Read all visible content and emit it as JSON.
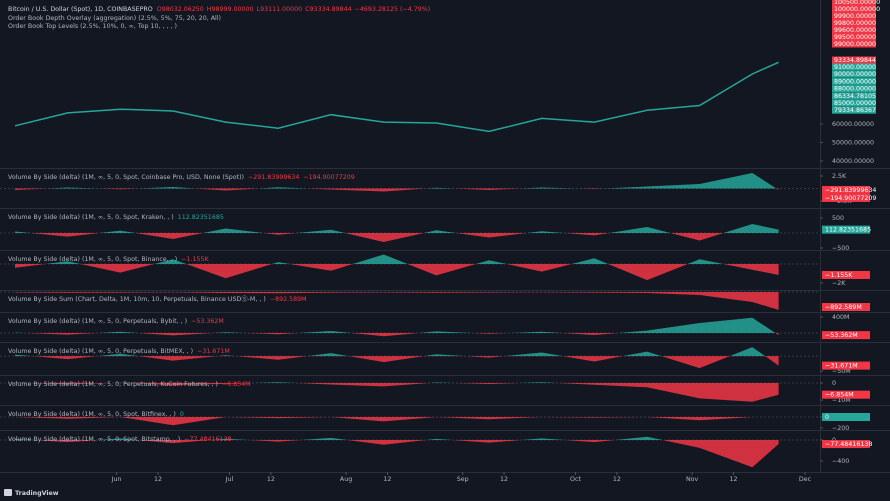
{
  "header": {
    "symbol": "Bitcoin / U.S. Dollar (Spot), 1D, COINBASEPRO",
    "ohlc": [
      "O98032.06250",
      "H98999.00000",
      "L93111.00000",
      "C93334.89844",
      "−4693.28125 (−4.79%)"
    ],
    "indicators": [
      "Order Book Depth Overlay (aggregation) (2.5%, 5%, 75, 20, 20, All)",
      "Order Book Top Levels (2.5%, 10%, 0, ∞, Top 10, , , , )"
    ]
  },
  "order_book": {
    "asks": [
      "100500.00000",
      "100000.00000",
      "99900.00000",
      "99800.00000",
      "99600.00000",
      "99500.00000",
      "99000.00000"
    ],
    "last": "93334.89844",
    "bids": [
      "91000.00000",
      "90000.00000",
      "89000.00000",
      "88000.00000",
      "86334.78105",
      "85000.00000",
      "79334.86367"
    ]
  },
  "chart_data": [
    {
      "type": "line",
      "x": [
        4,
        18,
        32,
        46,
        60,
        74,
        88,
        102,
        116,
        130,
        144,
        158,
        172,
        186,
        200,
        207
      ],
      "values": [
        59000,
        66000,
        68000,
        67000,
        61000,
        57700,
        65000,
        61000,
        60500,
        56000,
        63000,
        61000,
        67400,
        70000,
        87000,
        93334.89844
      ],
      "color": "#26a69a",
      "xlim": [
        0,
        218
      ],
      "ylim": [
        36200,
        127000
      ],
      "yticks": [
        {
          "value": 60000,
          "label": "60000.00000"
        },
        {
          "value": 50000,
          "label": "50000.00000"
        },
        {
          "value": 40000,
          "label": "40000.00000"
        }
      ],
      "xticks": [
        {
          "value": 31,
          "label": "Jun"
        },
        {
          "value": 42,
          "label": "12"
        },
        {
          "value": 61,
          "label": "Jul"
        },
        {
          "value": 72,
          "label": "12"
        },
        {
          "value": 92,
          "label": "Aug"
        },
        {
          "value": 103,
          "label": "12"
        },
        {
          "value": 123,
          "label": "Sep"
        },
        {
          "value": 134,
          "label": "12"
        },
        {
          "value": 153,
          "label": "Oct"
        },
        {
          "value": 164,
          "label": "12"
        },
        {
          "value": 184,
          "label": "Nov"
        },
        {
          "value": 195,
          "label": "12"
        },
        {
          "value": 214,
          "label": "Dec"
        }
      ]
    },
    {
      "type": "area",
      "title": "Volume By Side (delta) (1M, ∞, 5, 0, Spot, Coinbase Pro, USD, None (Spot))",
      "legend_values": [
        "−291.83999634",
        "−194.90077209"
      ],
      "x": [
        4,
        18,
        32,
        46,
        60,
        74,
        88,
        102,
        116,
        130,
        144,
        158,
        172,
        186,
        200,
        207
      ],
      "values": [
        -300,
        200,
        -150,
        300,
        -400,
        250,
        -200,
        -600,
        150,
        -300,
        200,
        -100,
        400,
        900,
        3100,
        -291.83999634
      ],
      "up_color": "#26a69a",
      "down_color": "#f23645",
      "ylim": [
        -3900,
        4100
      ],
      "yticks": [
        {
          "value": 2500,
          "label": "2.5K"
        },
        {
          "value": -2500,
          "label": "−2.5K"
        }
      ]
    },
    {
      "type": "area",
      "title": "Volume By Side (delta) (1M, ∞, 5, 0, Spot, Kraken, , )",
      "legend_values": [
        "112.82351685"
      ],
      "x": [
        4,
        18,
        32,
        46,
        60,
        74,
        88,
        102,
        116,
        130,
        144,
        158,
        172,
        186,
        200,
        207
      ],
      "values": [
        50,
        -120,
        80,
        -200,
        150,
        -60,
        110,
        -300,
        90,
        -150,
        60,
        -80,
        200,
        -250,
        300,
        112.82351685
      ],
      "up_color": "#26a69a",
      "down_color": "#f23645",
      "ylim": [
        -567,
        833
      ],
      "yticks": [
        500,
        {
          "value": -500,
          "label": "−500"
        }
      ]
    },
    {
      "type": "area",
      "title": "Volume By Side (delta) (1M, ∞, 5, 0, Spot, Binance, , )",
      "legend_values": [
        "−1.155K"
      ],
      "x": [
        4,
        18,
        32,
        46,
        60,
        74,
        88,
        102,
        116,
        130,
        144,
        158,
        172,
        186,
        200,
        207
      ],
      "values": [
        -400,
        300,
        -900,
        500,
        -1500,
        200,
        -700,
        1000,
        -1200,
        400,
        -800,
        600,
        -1700,
        500,
        -600,
        -1155
      ],
      "up_color": "#26a69a",
      "down_color": "#f23645",
      "ylim": [
        -2737,
        1474
      ],
      "yticks": [
        {
          "value": -2000,
          "label": "−2K"
        }
      ]
    },
    {
      "type": "area",
      "title": "Volume By Side Sum (Chart, Delta, 1M, 10m, 10, Perpetuals, Binance USDⓈ-M, , )",
      "legend_values": [
        "−892.589M"
      ],
      "x": [
        4,
        18,
        32,
        46,
        60,
        74,
        88,
        102,
        116,
        130,
        144,
        158,
        172,
        186,
        200,
        207
      ],
      "values": [
        -20000000,
        -40000000,
        -30000000,
        -10000000,
        -50000000,
        -60000000,
        -30000000,
        -20000000,
        -40000000,
        -25000000,
        -10000000,
        -30000000,
        -50000000,
        -150000000,
        -500000000,
        -892589000
      ],
      "up_color": "#26a69a",
      "down_color": "#f23645",
      "ylim": [
        -1000000000,
        100000000
      ],
      "yticks": []
    },
    {
      "type": "area",
      "title": "Volume By Side (delta) (1M, ∞, 5, 0, Perpetuals, Bybit, , )",
      "legend_values": [
        "−53.362M"
      ],
      "x": [
        4,
        18,
        32,
        46,
        60,
        74,
        88,
        102,
        116,
        130,
        144,
        158,
        172,
        186,
        200,
        207
      ],
      "values": [
        10000000,
        -40000000,
        30000000,
        -60000000,
        20000000,
        -30000000,
        50000000,
        -80000000,
        40000000,
        -20000000,
        30000000,
        -50000000,
        60000000,
        250000000,
        380000000,
        -53362000
      ],
      "up_color": "#26a69a",
      "down_color": "#f23645",
      "ylim": [
        -225000000,
        525000000
      ],
      "yticks": [
        {
          "value": 400000000,
          "label": "400M"
        }
      ]
    },
    {
      "type": "area",
      "title": "Volume By Side (delta) (1M, ∞, 5, 0, Perpetuals, BitMEX, , )",
      "legend_values": [
        "−31.671M"
      ],
      "x": [
        4,
        18,
        32,
        46,
        60,
        74,
        88,
        102,
        116,
        130,
        144,
        158,
        172,
        186,
        200,
        207
      ],
      "values": [
        5000000,
        -10000000,
        8000000,
        -15000000,
        3000000,
        -12000000,
        10000000,
        -20000000,
        6000000,
        -5000000,
        12000000,
        -18000000,
        15000000,
        -40000000,
        30000000,
        -31671000
      ],
      "up_color": "#26a69a",
      "down_color": "#f23645",
      "ylim": [
        -63000000,
        47000000
      ],
      "yticks": [
        {
          "value": -50000000,
          "label": "−50M"
        }
      ]
    },
    {
      "type": "area",
      "title": "Volume By Side (delta) (1M, ∞, 5, 0, Perpetuals, KuCoin Futures, , )",
      "legend_values": [
        "−6.854M"
      ],
      "x": [
        4,
        18,
        32,
        46,
        60,
        74,
        88,
        102,
        116,
        130,
        144,
        158,
        172,
        186,
        200,
        207
      ],
      "values": [
        300000,
        -800000,
        200000,
        -1200000,
        -500000,
        400000,
        -900000,
        -2000000,
        300000,
        -600000,
        500000,
        -1000000,
        -2500000,
        -9000000,
        -11000000,
        -6854000
      ],
      "up_color": "#26a69a",
      "down_color": "#f23645",
      "ylim": [
        -12900000,
        4700000
      ],
      "yticks": [
        0,
        {
          "value": -10000000,
          "label": "−10M"
        }
      ]
    },
    {
      "type": "area",
      "title": "Volume By Side (delta) (1M, ∞, 5, 0, Spot, Bitfinex, , )",
      "legend_values": [
        "0"
      ],
      "x": [
        4,
        18,
        32,
        46,
        60,
        74,
        88,
        102,
        116,
        130,
        144,
        158,
        172,
        186,
        200,
        207
      ],
      "values": [
        0,
        -30,
        0,
        -150,
        0,
        -20,
        0,
        -80,
        0,
        -40,
        0,
        -10,
        0,
        -60,
        0,
        0
      ],
      "up_color": "#26a69a",
      "down_color": "#f23645",
      "ylim": [
        -236,
        218
      ],
      "yticks": [
        0,
        {
          "value": -200,
          "label": "−200"
        }
      ]
    },
    {
      "type": "area",
      "title": "Volume By Side (delta) (1M, ∞, 5, 0, Spot, Bitstamp, , )",
      "legend_values": [
        "−77.48416138"
      ],
      "x": [
        4,
        18,
        32,
        46,
        60,
        74,
        88,
        102,
        116,
        130,
        144,
        158,
        172,
        186,
        200,
        207
      ],
      "values": [
        20,
        -40,
        30,
        -60,
        25,
        -30,
        40,
        -90,
        20,
        -50,
        30,
        -40,
        60,
        -150,
        -520,
        -77.48416138
      ],
      "up_color": "#26a69a",
      "down_color": "#f23645",
      "ylim": [
        -610,
        190
      ],
      "yticks": [
        0,
        {
          "value": -400,
          "label": "−400"
        }
      ]
    }
  ],
  "footer": "TradingView"
}
